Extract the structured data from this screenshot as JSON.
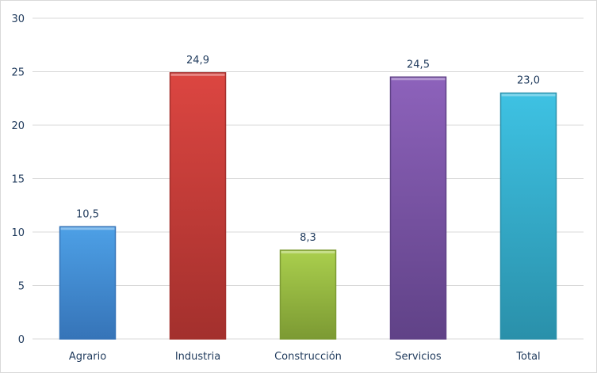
{
  "chart_data": {
    "type": "bar",
    "title": "",
    "xlabel": "",
    "ylabel": "",
    "categories": [
      "Agrario",
      "Industria",
      "Construcción",
      "Servicios",
      "Total"
    ],
    "values": [
      10.5,
      24.9,
      8.3,
      24.5,
      23.0
    ],
    "data_labels": [
      "10,5",
      "24,9",
      "8,3",
      "24,5",
      "23,0"
    ],
    "ylim": [
      0,
      30
    ],
    "yticks": [
      0,
      5,
      10,
      15,
      20,
      25,
      30
    ],
    "grid": true,
    "legend": "none",
    "colors": [
      [
        "#4da0e6",
        "#3674b8"
      ],
      [
        "#dc4641",
        "#a3302d"
      ],
      [
        "#aacf4d",
        "#7c9a33"
      ],
      [
        "#8d62bb",
        "#604287"
      ],
      [
        "#3ec2e3",
        "#2a90aa"
      ]
    ]
  }
}
